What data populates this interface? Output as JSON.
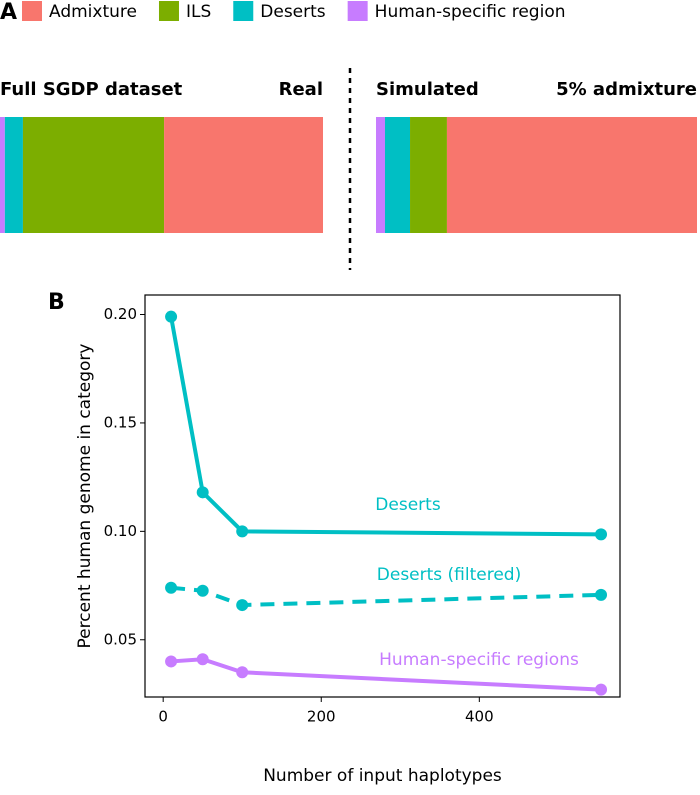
{
  "chart_data": [
    {
      "type": "stacked_bar",
      "panel": "A",
      "categories": [
        "Real",
        "5% admixture"
      ],
      "category_titles": [
        "Full SGDP dataset",
        "Simulated"
      ],
      "xlim": [
        0,
        100
      ],
      "series": [
        {
          "name": "Admixture",
          "color": "#f8766d",
          "values": [
            49.2,
            77.9
          ]
        },
        {
          "name": "ILS",
          "color": "#7cae00",
          "values": [
            43.7,
            11.5
          ]
        },
        {
          "name": "Deserts",
          "color": "#00bfc4",
          "values": [
            5.6,
            7.8
          ]
        },
        {
          "name": "Human-specific region",
          "color": "#c77cff",
          "values": [
            1.5,
            2.8
          ]
        }
      ]
    },
    {
      "type": "line",
      "panel": "B",
      "xlabel": "Number of input haplotypes",
      "ylabel": "Percent human genome in category",
      "x": [
        10,
        50,
        100,
        554
      ],
      "xlim": [
        -23,
        578
      ],
      "xticks": [
        0,
        200,
        400
      ],
      "ylim": [
        0.0236,
        0.209
      ],
      "yticks": [
        0.05,
        {
          "value": 0.1,
          "label": "0.10"
        },
        0.15,
        {
          "value": 0.2,
          "label": "0.20"
        }
      ],
      "series": [
        {
          "name": "Deserts",
          "color": "#00bfc4",
          "dashed": false,
          "values": [
            0.199,
            0.118,
            0.1,
            0.0986
          ]
        },
        {
          "name": "Deserts (filtered)",
          "color": "#00bfc4",
          "dashed": true,
          "values": [
            0.074,
            0.0726,
            0.066,
            0.0707
          ]
        },
        {
          "name": "Human-specific regions",
          "color": "#c77cff",
          "dashed": false,
          "values": [
            0.04,
            0.041,
            0.035,
            0.027
          ]
        }
      ]
    }
  ]
}
